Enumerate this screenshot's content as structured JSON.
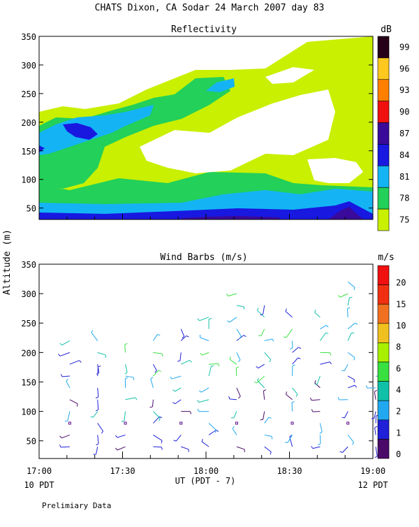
{
  "header": {
    "title": "CHATS Dixon, CA  Sodar  24 March 2007  day  83",
    "y_label": "Altitude (m)",
    "x_label": "UT  (PDT - 7)",
    "left_local": "10 PDT",
    "right_local": "12 PDT",
    "footer": "Prelimiary Data"
  },
  "chart_data": [
    {
      "type": "heatmap",
      "title": "Reflectivity",
      "ylim": [
        30,
        350
      ],
      "yticks": [
        "50",
        "100",
        "150",
        "200",
        "250",
        "300",
        "350"
      ],
      "colorbar": {
        "unit": "dB",
        "labels": [
          "75",
          "78",
          "81",
          "84",
          "87",
          "90",
          "93",
          "96",
          "99"
        ],
        "colors": [
          "#c8f000",
          "#22d05a",
          "#14b4f4",
          "#1818e0",
          "#3a0a9a",
          "#f01010",
          "#ff7f00",
          "#ffc81e",
          "#250018"
        ]
      },
      "description_levels": [
        {
          "level": "75",
          "color": "#c8f000"
        },
        {
          "level": "78",
          "color": "#22d05a"
        },
        {
          "level": "81",
          "color": "#14b4f4"
        },
        {
          "level": "84",
          "color": "#1818e0"
        },
        {
          "level": "87",
          "color": "#3a0a9a"
        }
      ]
    },
    {
      "type": "scatter",
      "title": "Wind Barbs (m/s)",
      "xlim": [
        "17:00",
        "19:00"
      ],
      "xticks": [
        "17:00",
        "17:30",
        "18:00",
        "18:30",
        "19:00"
      ],
      "ylim": [
        20,
        350
      ],
      "yticks": [
        "50",
        "100",
        "150",
        "200",
        "250",
        "300",
        "350"
      ],
      "colorbar": {
        "unit": "m/s",
        "labels": [
          "0",
          "1",
          "2",
          "4",
          "6",
          "8",
          "10",
          "15",
          "20"
        ],
        "colors": [
          "#4a0a6a",
          "#2020d8",
          "#20a8f0",
          "#10c0a8",
          "#38e040",
          "#a8f000",
          "#f0c020",
          "#f07020",
          "#f03010",
          "#f01010"
        ]
      },
      "barb_times": [
        "17:07",
        "17:17",
        "17:27",
        "17:37",
        "17:47",
        "17:57",
        "18:07",
        "18:17",
        "18:27",
        "18:37",
        "18:47",
        "18:57"
      ],
      "barb_altitudes": [
        40,
        60,
        80,
        100,
        120,
        140,
        160,
        180,
        200,
        220,
        240,
        260,
        280,
        300,
        320
      ]
    }
  ]
}
